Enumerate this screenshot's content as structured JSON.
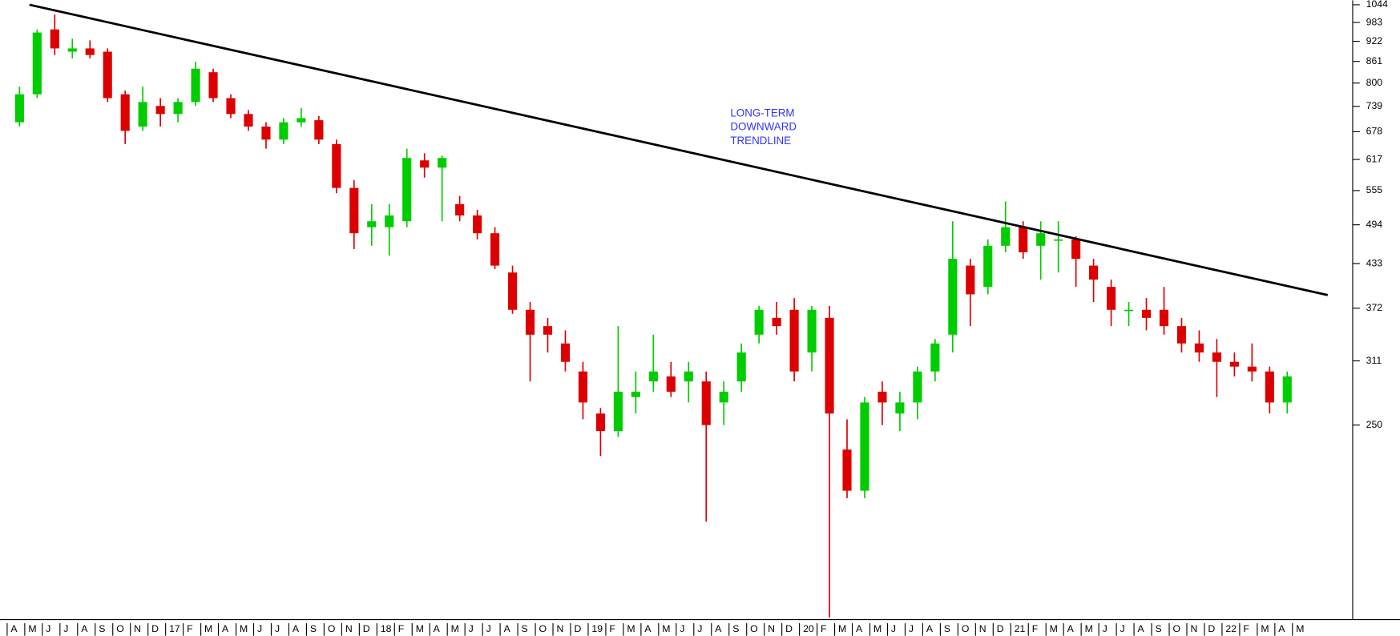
{
  "chart_data": {
    "type": "candlestick",
    "categories": [
      "A",
      "M",
      "J",
      "J",
      "A",
      "S",
      "O",
      "N",
      "D",
      "17",
      "F",
      "M",
      "A",
      "M",
      "J",
      "J",
      "A",
      "S",
      "O",
      "N",
      "D",
      "18",
      "F",
      "M",
      "A",
      "M",
      "J",
      "J",
      "A",
      "S",
      "O",
      "N",
      "D",
      "19",
      "F",
      "M",
      "A",
      "M",
      "J",
      "J",
      "A",
      "S",
      "O",
      "N",
      "D",
      "20",
      "F",
      "M",
      "A",
      "M",
      "J",
      "J",
      "A",
      "S",
      "O",
      "N",
      "D",
      "21",
      "F",
      "M",
      "A",
      "M",
      "J",
      "J",
      "A",
      "S",
      "O",
      "N",
      "D",
      "22",
      "F",
      "M",
      "A",
      "M"
    ],
    "open": [
      700,
      770,
      960,
      890,
      900,
      890,
      770,
      690,
      740,
      720,
      750,
      830,
      760,
      720,
      690,
      660,
      700,
      705,
      650,
      560,
      490,
      490,
      500,
      615,
      600,
      530,
      510,
      480,
      420,
      370,
      350,
      330,
      300,
      260,
      245,
      275,
      290,
      295,
      290,
      290,
      270,
      290,
      340,
      360,
      370,
      320,
      360,
      230,
      200,
      280,
      260,
      270,
      300,
      340,
      430,
      400,
      460,
      490,
      460,
      470,
      470,
      430,
      400,
      370,
      370,
      370,
      350,
      330,
      320,
      310,
      305,
      300,
      270,
      null
    ],
    "high": [
      790,
      960,
      1010,
      930,
      925,
      900,
      780,
      790,
      760,
      760,
      860,
      840,
      770,
      730,
      700,
      710,
      735,
      715,
      660,
      575,
      530,
      530,
      640,
      630,
      625,
      545,
      520,
      490,
      430,
      380,
      360,
      345,
      310,
      265,
      350,
      300,
      340,
      310,
      310,
      300,
      290,
      330,
      375,
      380,
      385,
      375,
      375,
      255,
      275,
      290,
      280,
      305,
      335,
      500,
      440,
      470,
      535,
      500,
      500,
      500,
      475,
      440,
      410,
      380,
      385,
      400,
      360,
      345,
      335,
      320,
      330,
      305,
      300,
      null
    ],
    "low": [
      690,
      760,
      880,
      870,
      870,
      750,
      650,
      680,
      690,
      700,
      740,
      750,
      710,
      680,
      640,
      650,
      690,
      650,
      550,
      455,
      460,
      445,
      490,
      580,
      500,
      500,
      470,
      425,
      365,
      290,
      320,
      300,
      255,
      225,
      240,
      260,
      280,
      275,
      270,
      180,
      250,
      280,
      330,
      340,
      290,
      300,
      130,
      195,
      195,
      250,
      245,
      255,
      290,
      320,
      350,
      390,
      450,
      440,
      410,
      420,
      400,
      380,
      350,
      350,
      345,
      340,
      320,
      310,
      275,
      295,
      290,
      260,
      260,
      null
    ],
    "close": [
      770,
      950,
      900,
      900,
      880,
      760,
      680,
      750,
      720,
      750,
      840,
      760,
      720,
      690,
      660,
      700,
      710,
      660,
      560,
      480,
      500,
      510,
      620,
      600,
      620,
      510,
      480,
      430,
      370,
      340,
      340,
      310,
      270,
      245,
      280,
      280,
      300,
      280,
      300,
      250,
      280,
      320,
      370,
      350,
      300,
      370,
      260,
      200,
      270,
      270,
      270,
      300,
      330,
      440,
      390,
      460,
      490,
      450,
      480,
      470,
      440,
      410,
      370,
      370,
      360,
      350,
      330,
      320,
      310,
      305,
      300,
      270,
      295,
      null
    ],
    "up_color": "#00cc00",
    "down_color": "#dd0000",
    "ylim": [
      129,
      1060
    ],
    "log_scale": true,
    "yticks": [
      250,
      311,
      372,
      433,
      494,
      555,
      617,
      678,
      739,
      800,
      861,
      922,
      983,
      1044
    ],
    "trendline": {
      "values": [
        1044,
        389
      ],
      "color": "#000000"
    },
    "annotation": {
      "lines": [
        "LONG-TERM",
        "DOWNWARD",
        "TRENDLINE"
      ],
      "color": "#3333ff"
    }
  }
}
